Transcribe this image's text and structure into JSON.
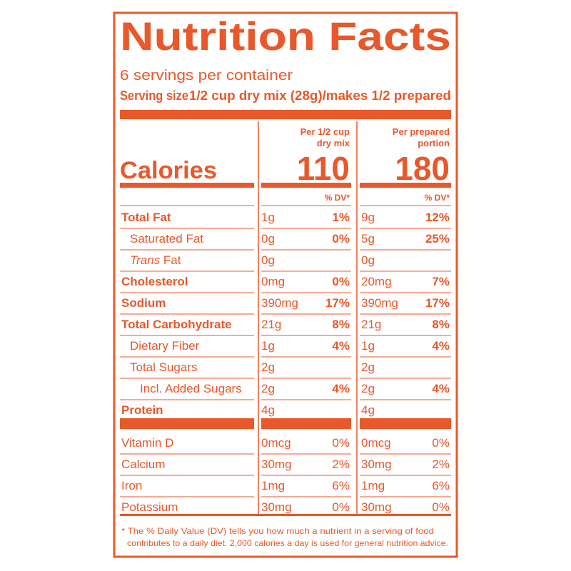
{
  "title": "Nutrition Facts",
  "servings": "6 servings per container",
  "serving_size_label": "Serving size",
  "serving_size_value": "1/2 cup dry mix (28g)/makes 1/2 prepared",
  "calories_label": "Calories",
  "columns": [
    {
      "header": [
        "Per 1/2 cup",
        "dry mix"
      ],
      "calories": "110",
      "dv_label": "% DV*"
    },
    {
      "header": [
        "Per prepared",
        "portion"
      ],
      "calories": "180",
      "dv_label": "% DV*"
    }
  ],
  "nutrients": [
    {
      "name": "Total Fat",
      "values": [
        [
          "1g",
          "1%"
        ],
        [
          "9g",
          "12%"
        ]
      ]
    },
    {
      "name": "Saturated Fat",
      "values": [
        [
          "0g",
          "0%"
        ],
        [
          "5g",
          "25%"
        ]
      ]
    },
    {
      "name_italic": "Trans",
      "name": " Fat",
      "values": [
        [
          "0g"
        ],
        [
          "0g"
        ]
      ]
    },
    {
      "name": "Cholesterol",
      "values": [
        [
          "0mg",
          "0%"
        ],
        [
          "20mg",
          "7%"
        ]
      ]
    },
    {
      "name": "Sodium",
      "values": [
        [
          "390mg",
          "17%"
        ],
        [
          "390mg",
          "17%"
        ]
      ]
    },
    {
      "name": "Total Carbohydrate",
      "values": [
        [
          "21g",
          "8%"
        ],
        [
          "21g",
          "8%"
        ]
      ]
    },
    {
      "name": "Dietary Fiber",
      "values": [
        [
          "1g",
          "4%"
        ],
        [
          "1g",
          "4%"
        ]
      ]
    },
    {
      "name": "Total Sugars",
      "values": [
        [
          "2g"
        ],
        [
          "2g"
        ]
      ]
    },
    {
      "name": "Incl. Added Sugars",
      "values": [
        [
          "2g",
          "4%"
        ],
        [
          "2g",
          "4%"
        ]
      ]
    },
    {
      "name": "Protein",
      "values": [
        [
          "4g"
        ],
        [
          "4g"
        ]
      ]
    }
  ],
  "vitamins": [
    {
      "name": "Vitamin D",
      "values": [
        [
          "0mcg",
          "0%"
        ],
        [
          "0mcg",
          "0%"
        ]
      ]
    },
    {
      "name": "Calcium",
      "values": [
        [
          "30mg",
          "2%"
        ],
        [
          "30mg",
          "2%"
        ]
      ]
    },
    {
      "name": "Iron",
      "values": [
        [
          "1mg",
          "6%"
        ],
        [
          "1mg",
          "6%"
        ]
      ]
    },
    {
      "name": "Potassium",
      "values": [
        [
          "30mg",
          "0%"
        ],
        [
          "30mg",
          "0%"
        ]
      ]
    }
  ],
  "footnote": [
    "* The % Daily Value (DV) tells you how much a nutrient in a serving of food",
    "contributes to a daily diet. 2,000 calories a day is used for general nutrition advice."
  ]
}
